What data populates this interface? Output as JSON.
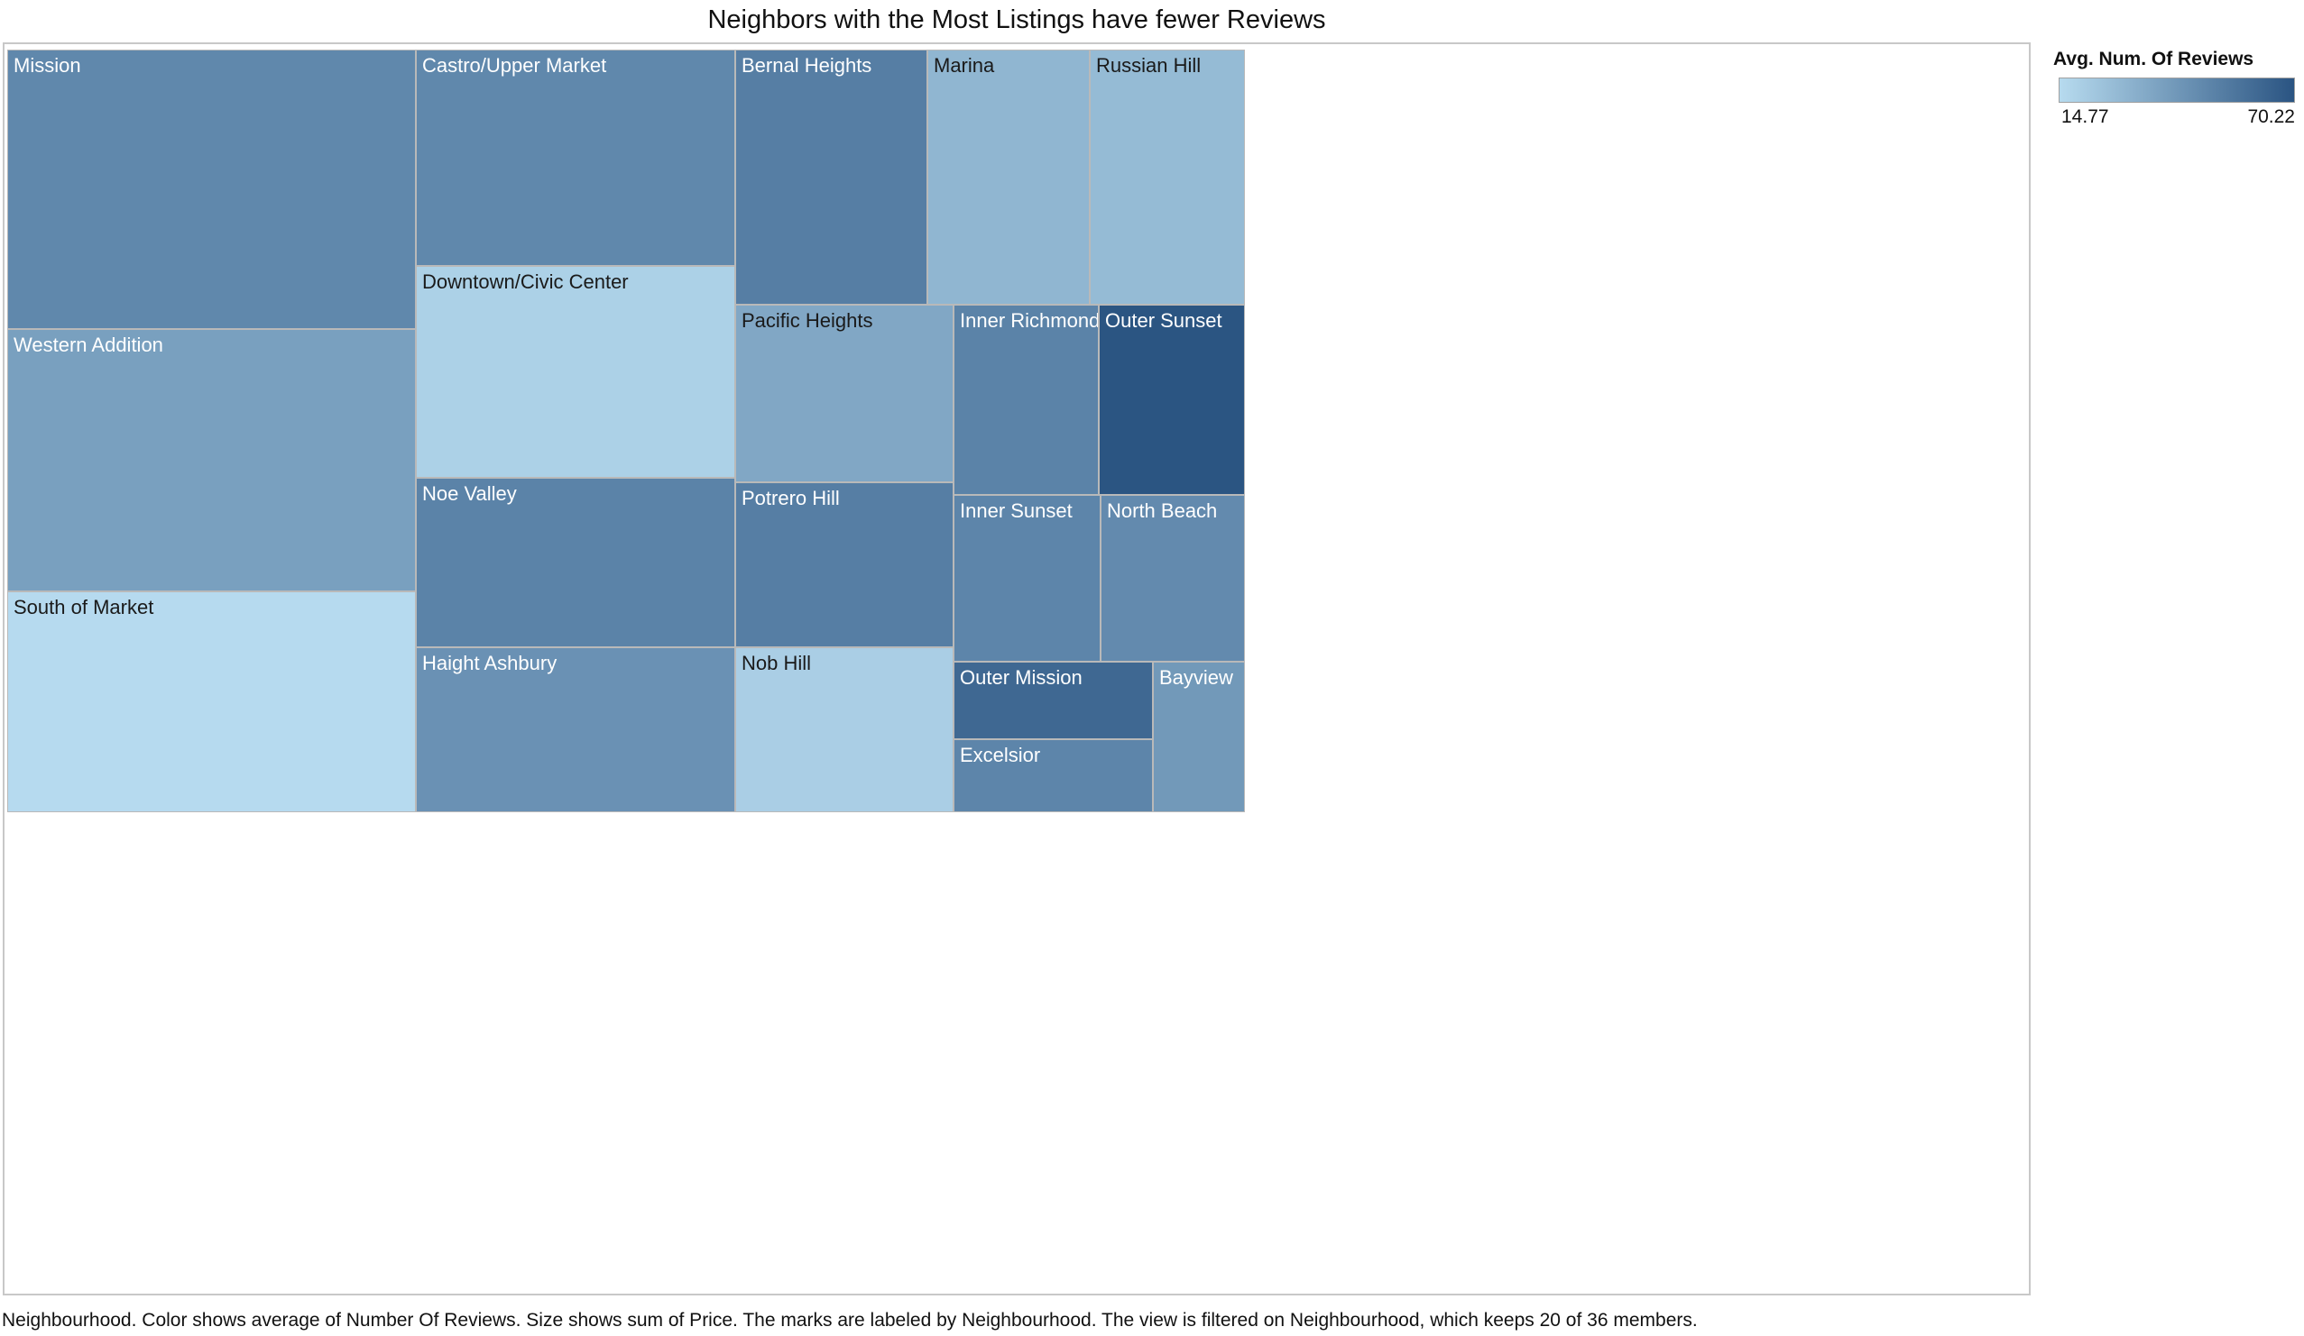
{
  "title": "Neighbors with the Most Listings have fewer Reviews",
  "legend": {
    "title": "Avg. Num. Of Reviews",
    "min_label": "14.77",
    "max_label": "70.22",
    "color_low": "#b7dbef",
    "color_high": "#2a5482"
  },
  "caption": "Neighbourhood.  Color shows average of Number Of Reviews.  Size shows sum of Price.  The marks are labeled by Neighbourhood. The view is filtered on Neighbourhood, which keeps 20 of 36 members.",
  "chart_data": {
    "type": "treemap",
    "title": "Neighbors with the Most Listings have fewer Reviews",
    "size_measure": "Sum of Price",
    "color_measure": "Avg. Num. Of Reviews",
    "color_range": [
      14.77,
      70.22
    ],
    "items": [
      {
        "name": "Mission",
        "size": 14.8,
        "color_value": 49
      },
      {
        "name": "Western Addition",
        "size": 13.8,
        "color_value": 39
      },
      {
        "name": "South of Market",
        "size": 11.6,
        "color_value": 15
      },
      {
        "name": "Castro/Upper Market",
        "size": 8.8,
        "color_value": 49
      },
      {
        "name": "Downtown/Civic Center",
        "size": 8.8,
        "color_value": 19
      },
      {
        "name": "Noe Valley",
        "size": 7.0,
        "color_value": 51
      },
      {
        "name": "Haight Ashbury",
        "size": 6.8,
        "color_value": 45
      },
      {
        "name": "Bernal Heights",
        "size": 6.3,
        "color_value": 53
      },
      {
        "name": "Marina",
        "size": 5.3,
        "color_value": 30
      },
      {
        "name": "Russian Hill",
        "size": 5.1,
        "color_value": 28
      },
      {
        "name": "Pacific Heights",
        "size": 4.9,
        "color_value": 36
      },
      {
        "name": "Potrero Hill",
        "size": 4.6,
        "color_value": 53
      },
      {
        "name": "Nob Hill",
        "size": 4.5,
        "color_value": 20
      },
      {
        "name": "Inner Richmond",
        "size": 3.6,
        "color_value": 51
      },
      {
        "name": "Outer Sunset",
        "size": 3.6,
        "color_value": 70
      },
      {
        "name": "Inner Sunset",
        "size": 3.2,
        "color_value": 50
      },
      {
        "name": "North Beach",
        "size": 3.1,
        "color_value": 48
      },
      {
        "name": "Outer Mission",
        "size": 1.9,
        "color_value": 62
      },
      {
        "name": "Excelsior",
        "size": 1.8,
        "color_value": 50
      },
      {
        "name": "Bayview",
        "size": 1.7,
        "color_value": 42
      }
    ]
  }
}
